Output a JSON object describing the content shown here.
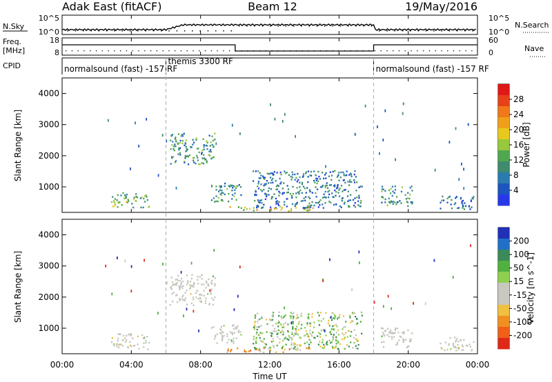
{
  "header": {
    "radar": "Adak East (fitACF)",
    "beam": "Beam 12",
    "date": "19/May/2016"
  },
  "noise_panel": {
    "left_label": "N.Sky",
    "right_label": "N.Search",
    "left_ticks": [
      "10^5",
      "10^0"
    ],
    "right_ticks": [
      "10^5",
      "10^0"
    ]
  },
  "freq_panel": {
    "label_lines": [
      "Freq.",
      "[MHz]"
    ],
    "right_label": "Nave",
    "left_ticks": [
      "18",
      "8"
    ],
    "right_ticks": [
      "60",
      "0"
    ]
  },
  "cpid": {
    "label": "CPID",
    "segments": [
      {
        "start_hr": 0,
        "end_hr": 6,
        "text": "normalsound (fast) -157 RF"
      },
      {
        "start_hr": 6,
        "end_hr": 18,
        "text": "themis 3300 RF"
      },
      {
        "start_hr": 18,
        "end_hr": 24,
        "text": "normalsound (fast) -157 RF"
      }
    ]
  },
  "x_axis": {
    "title": "Time UT",
    "ticks": [
      "00:00",
      "04:00",
      "08:00",
      "12:00",
      "16:00",
      "20:00",
      "00:00"
    ],
    "tick_hours": [
      0,
      4,
      8,
      12,
      16,
      20,
      24
    ]
  },
  "chart_data": [
    {
      "type": "heatmap",
      "title": "Power",
      "ylabel": "Slant Range [km]",
      "ylim": [
        180,
        4500
      ],
      "y_ticks": [
        "1000",
        "2000",
        "3000",
        "4000"
      ],
      "y_tick_values": [
        1000,
        2000,
        3000,
        4000
      ],
      "colorbar_label": "Power [dB]",
      "colorbar_ticks": [
        "4",
        "8",
        "12",
        "16",
        "20",
        "24",
        "28"
      ],
      "colorbar_colors": [
        "#2838e8",
        "#1c55c0",
        "#2a7bb0",
        "#3e8b6e",
        "#4fa84f",
        "#98c83c",
        "#e8c81c",
        "#f0a018",
        "#f07818",
        "#e84018",
        "#e01818"
      ],
      "echo_regions": [
        {
          "t0": 2.8,
          "t1": 5.0,
          "r0": 300,
          "r1": 800,
          "level": 4
        },
        {
          "t0": 6.2,
          "t1": 8.8,
          "r0": 1700,
          "r1": 2700,
          "level": 3
        },
        {
          "t0": 8.6,
          "t1": 10.4,
          "r0": 500,
          "r1": 1100,
          "level": 3
        },
        {
          "t0": 9.5,
          "t1": 14.5,
          "r0": 200,
          "r1": 350,
          "level": 6
        },
        {
          "t0": 11.0,
          "t1": 17.3,
          "r0": 300,
          "r1": 1500,
          "level": 2
        },
        {
          "t0": 18.4,
          "t1": 20.2,
          "r0": 350,
          "r1": 1000,
          "level": 3
        },
        {
          "t0": 21.8,
          "t1": 23.8,
          "r0": 250,
          "r1": 700,
          "level": 2
        }
      ]
    },
    {
      "type": "heatmap",
      "title": "Velocity",
      "ylabel": "Slant Range [km]",
      "ylim": [
        180,
        4500
      ],
      "y_ticks": [
        "1000",
        "2000",
        "3000",
        "4000"
      ],
      "y_tick_values": [
        1000,
        2000,
        3000,
        4000
      ],
      "colorbar_label": "Velocity [m s^-1]",
      "colorbar_ticks": [
        "200",
        "100",
        "50",
        "15",
        "-15",
        "-50",
        "-100",
        "-200"
      ],
      "colorbar_colors": [
        "#2030b8",
        "#2070c8",
        "#3a8a5a",
        "#50b040",
        "#8ed050",
        "#c8c8c0",
        "#c8c8c0",
        "#f0c040",
        "#f09020",
        "#f06018",
        "#e02818"
      ],
      "echo_regions": [
        {
          "t0": 2.8,
          "t1": 5.0,
          "r0": 300,
          "r1": 800,
          "kind": "ground"
        },
        {
          "t0": 6.2,
          "t1": 8.8,
          "r0": 1700,
          "r1": 2700,
          "kind": "ground"
        },
        {
          "t0": 8.6,
          "t1": 10.4,
          "r0": 500,
          "r1": 1100,
          "kind": "ground"
        },
        {
          "t0": 9.5,
          "t1": 14.5,
          "r0": 200,
          "r1": 350,
          "kind": "neg"
        },
        {
          "t0": 11.0,
          "t1": 17.3,
          "r0": 300,
          "r1": 1500,
          "kind": "mixed"
        },
        {
          "t0": 18.4,
          "t1": 20.2,
          "r0": 350,
          "r1": 1000,
          "kind": "ground"
        },
        {
          "t0": 21.8,
          "t1": 23.8,
          "r0": 250,
          "r1": 700,
          "kind": "ground"
        }
      ]
    }
  ]
}
